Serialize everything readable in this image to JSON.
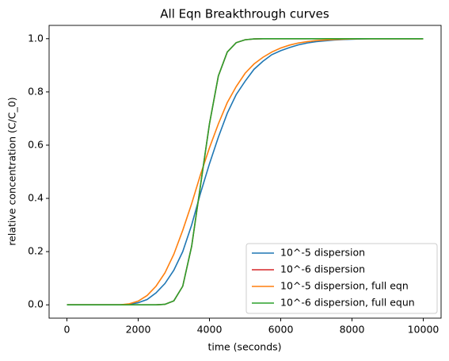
{
  "chart_data": {
    "type": "line",
    "title": "All Eqn Breakthrough curves",
    "x_label": "time (seconds)",
    "y_label": "relative concentration (C/C_0)",
    "x": [
      0,
      250,
      500,
      750,
      1000,
      1250,
      1500,
      1750,
      2000,
      2250,
      2500,
      2750,
      3000,
      3250,
      3500,
      3750,
      4000,
      4250,
      4500,
      4750,
      5000,
      5250,
      5500,
      5750,
      6000,
      6250,
      6500,
      6750,
      7000,
      7250,
      7500,
      7750,
      8000,
      8250,
      8500,
      8750,
      9000,
      9250,
      9500,
      9750,
      10000
    ],
    "series": [
      {
        "name": "10^-5 dispersion",
        "color": "#1f77b4",
        "values": [
          0,
          0,
          0,
          0,
          0,
          0,
          0,
          0.002,
          0.008,
          0.02,
          0.045,
          0.08,
          0.13,
          0.2,
          0.3,
          0.42,
          0.53,
          0.63,
          0.72,
          0.79,
          0.84,
          0.885,
          0.915,
          0.94,
          0.955,
          0.967,
          0.977,
          0.984,
          0.989,
          0.992,
          0.995,
          0.997,
          0.998,
          0.999,
          1,
          1,
          1,
          1,
          1,
          1,
          1
        ]
      },
      {
        "name": "10^-6 dispersion",
        "color": "#d62728",
        "values": [
          0,
          0,
          0,
          0,
          0,
          0,
          0,
          0,
          0,
          0,
          0,
          0.002,
          0.015,
          0.07,
          0.22,
          0.45,
          0.68,
          0.86,
          0.95,
          0.985,
          0.996,
          0.999,
          1,
          1,
          1,
          1,
          1,
          1,
          1,
          1,
          1,
          1,
          1,
          1,
          1,
          1,
          1,
          1,
          1,
          1,
          1
        ]
      },
      {
        "name": "10^-5 dispersion, full eqn",
        "color": "#ff7f0e",
        "values": [
          0,
          0,
          0,
          0,
          0,
          0,
          0,
          0.004,
          0.014,
          0.035,
          0.07,
          0.12,
          0.19,
          0.28,
          0.38,
          0.49,
          0.59,
          0.68,
          0.76,
          0.82,
          0.87,
          0.905,
          0.93,
          0.95,
          0.965,
          0.976,
          0.984,
          0.989,
          0.993,
          0.995,
          0.997,
          0.998,
          0.999,
          1,
          1,
          1,
          1,
          1,
          1,
          1,
          1
        ]
      },
      {
        "name": "10^-6 dispersion, full equn",
        "color": "#2ca02c",
        "values": [
          0,
          0,
          0,
          0,
          0,
          0,
          0,
          0,
          0,
          0,
          0,
          0.002,
          0.015,
          0.07,
          0.22,
          0.45,
          0.68,
          0.86,
          0.95,
          0.985,
          0.996,
          0.999,
          1,
          1,
          1,
          1,
          1,
          1,
          1,
          1,
          1,
          1,
          1,
          1,
          1,
          1,
          1,
          1,
          1,
          1,
          1
        ]
      }
    ],
    "xlim": [
      -500,
      10500
    ],
    "ylim": [
      -0.05,
      1.05
    ],
    "xticks": [
      0,
      2000,
      4000,
      6000,
      8000,
      10000
    ],
    "yticks": [
      {
        "value": 0,
        "label": "0.0"
      },
      0.2,
      0.4,
      0.6,
      0.8,
      {
        "value": 1,
        "label": "1.0"
      }
    ],
    "legend": "lower right"
  }
}
